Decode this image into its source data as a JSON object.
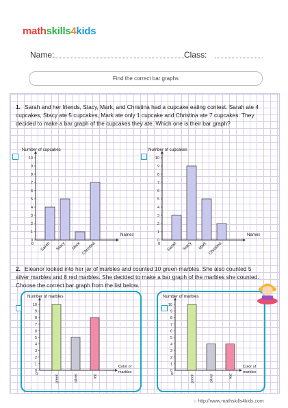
{
  "logo": {
    "parts": [
      "math",
      "skills",
      "4",
      "kids"
    ]
  },
  "header": {
    "name_label": "Name:",
    "class_label": "Class:"
  },
  "title": "Find the correct bar graphs",
  "q1": {
    "number": "1.",
    "text": "Sarah and her friends, Stacy, Mark, and Christina had a cupcake eating contest. Sarah ate 4 cupcakes, Stacy ate 5 cupcakes, Mark ate only 1 cupcake and Christina ate 7 cupcakes. They decided to make a bar graph of the cupcakes they ate. Which one is their bar graph?"
  },
  "q2": {
    "number": "2.",
    "text": "Eleanor looked into her jar of marbles and counted 10 green marbles. She also counted 5 silver marbles and 8 red marbles. She decided to make a bar graph of the marbles she counted. Choose the correct bar graph from the list below."
  },
  "footer": "http://www.mathskills4kids.com",
  "chart_data": [
    {
      "type": "bar",
      "ylabel": "Number of cupcakes",
      "xlabel": "Names",
      "categories": [
        "Sarah",
        "Stacy",
        "Mark",
        "Christina"
      ],
      "values": [
        4,
        5,
        1,
        7
      ],
      "ylim": [
        0,
        10
      ],
      "colors": [
        "#c9c9f0"
      ]
    },
    {
      "type": "bar",
      "ylabel": "Number of cupcakes",
      "xlabel": "Names",
      "categories": [
        "Sarah",
        "Stacy",
        "Mark",
        "Christina"
      ],
      "values": [
        3,
        9,
        5,
        2
      ],
      "ylim": [
        0,
        10
      ],
      "colors": [
        "#c9c9f0"
      ]
    },
    {
      "type": "bar",
      "ylabel": "Number of marbles",
      "xlabel": "Color of marbles",
      "categories": [
        "green",
        "silver",
        "red"
      ],
      "values": [
        10,
        5,
        8
      ],
      "ylim": [
        0,
        10
      ],
      "colors": [
        "#cfe8a0",
        "#c9c9d6",
        "#f08ca8"
      ]
    },
    {
      "type": "bar",
      "ylabel": "Number of marbles",
      "xlabel": "Color of marbles",
      "categories": [
        "green",
        "silver",
        "red"
      ],
      "values": [
        10,
        4,
        4
      ],
      "ylim": [
        0,
        10
      ],
      "colors": [
        "#cfe8a0",
        "#c9c9d6",
        "#f08ca8"
      ]
    }
  ]
}
